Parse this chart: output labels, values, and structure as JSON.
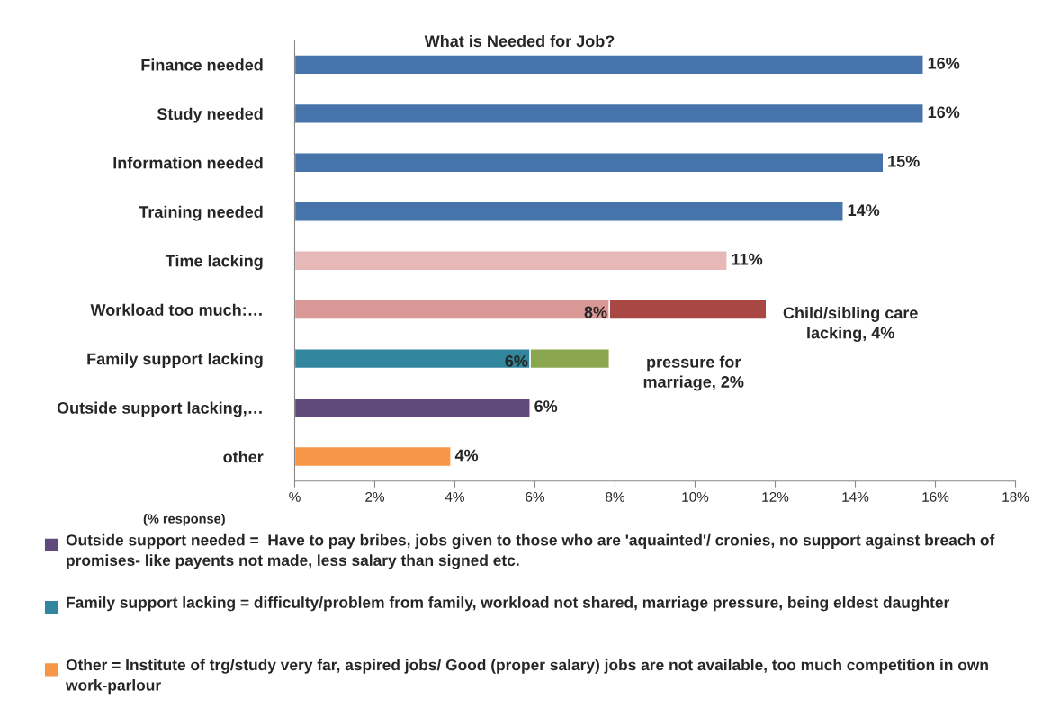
{
  "chart_data": {
    "type": "bar",
    "orientation": "horizontal",
    "stacked": true,
    "title": "What is Needed for Job?",
    "categories": [
      "Finance needed",
      "Study needed",
      "Information needed",
      "Training needed",
      "Time lacking",
      "Workload too much:…",
      "Family support lacking",
      "Outside support lacking,…",
      "other"
    ],
    "series": [
      {
        "colors": [
          "#4674aa",
          "#4674aa",
          "#4674aa",
          "#4674aa",
          "#e6b9b8",
          "#d99795",
          "#31859c",
          "#604a7b",
          "#f79646"
        ],
        "values": [
          15.7,
          15.7,
          14.7,
          13.7,
          10.8,
          7.86,
          5.88,
          5.88,
          3.9
        ],
        "value_labels": [
          "16%",
          "16%",
          "15%",
          "14%",
          "11%",
          "8%",
          "6%",
          "6%",
          "4%"
        ]
      },
      {
        "colors": [
          null,
          null,
          null,
          null,
          null,
          "#a94744",
          "#8aa74f",
          null,
          null
        ],
        "values": [
          null,
          null,
          null,
          null,
          null,
          3.92,
          1.98,
          null,
          null
        ],
        "value_labels": [
          null,
          null,
          null,
          null,
          null,
          "Child/sibling care\nlacking, 4%",
          "pressure for\nmarriage, 2%",
          null,
          null
        ]
      }
    ],
    "xlim": [
      0,
      18
    ],
    "xticks": [
      {
        "value": 0,
        "label": "%"
      },
      {
        "value": 2,
        "label": "2%"
      },
      {
        "value": 4,
        "label": "4%"
      },
      {
        "value": 6,
        "label": "6%"
      },
      {
        "value": 8,
        "label": "8%"
      },
      {
        "value": 10,
        "label": "10%"
      },
      {
        "value": 12,
        "label": "12%"
      },
      {
        "value": 14,
        "label": "14%"
      },
      {
        "value": 16,
        "label": "16%"
      },
      {
        "value": 18,
        "label": "18%"
      }
    ],
    "annotations": [
      "(% response)",
      "Outside support needed =  Have to pay bribes, jobs given to those who are 'aquainted'/ cronies, no support against breach of promises- like payents not made, less salary than signed etc.",
      "Family support lacking = difficulty/problem from family, workload not shared, marriage pressure, being eldest daughter",
      "Other = Institute of trg/study very far, aspired jobs/ Good (proper salary) jobs are not available, too much competition in own work-parlour"
    ]
  }
}
